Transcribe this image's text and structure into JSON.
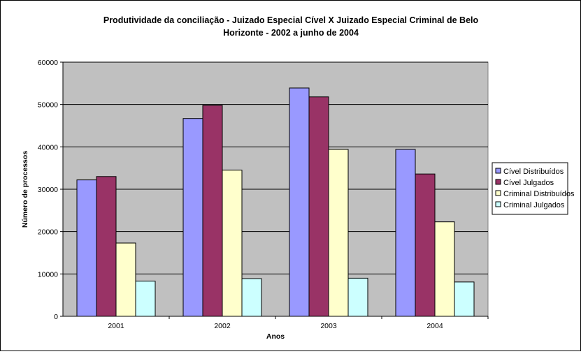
{
  "chart_data": {
    "type": "bar",
    "title_lines": [
      "Produtividade da conciliação - Juizado Especial Cível X Juizado Especial Criminal de Belo",
      "Horizonte - 2002 a junho de 2004"
    ],
    "xlabel": "Anos",
    "ylabel": "Número de processos",
    "categories": [
      "2001",
      "2002",
      "2003",
      "2004"
    ],
    "ylim": [
      0,
      60000
    ],
    "yticks": [
      0,
      10000,
      20000,
      30000,
      40000,
      50000,
      60000
    ],
    "grid": true,
    "legend_position": "right",
    "plot_background": "#c0c0c0",
    "series": [
      {
        "name": "Cível Distribuídos",
        "color": "#9999ff",
        "values": [
          32200,
          46700,
          53900,
          39400
        ]
      },
      {
        "name": "Cível Julgados",
        "color": "#993366",
        "values": [
          33000,
          49800,
          51800,
          33600
        ]
      },
      {
        "name": "Criminal Distribuídos",
        "color": "#ffffcc",
        "values": [
          17300,
          34500,
          39400,
          22300
        ]
      },
      {
        "name": "Criminal Julgados",
        "color": "#ccffff",
        "values": [
          8300,
          8900,
          9000,
          8100
        ]
      }
    ]
  }
}
